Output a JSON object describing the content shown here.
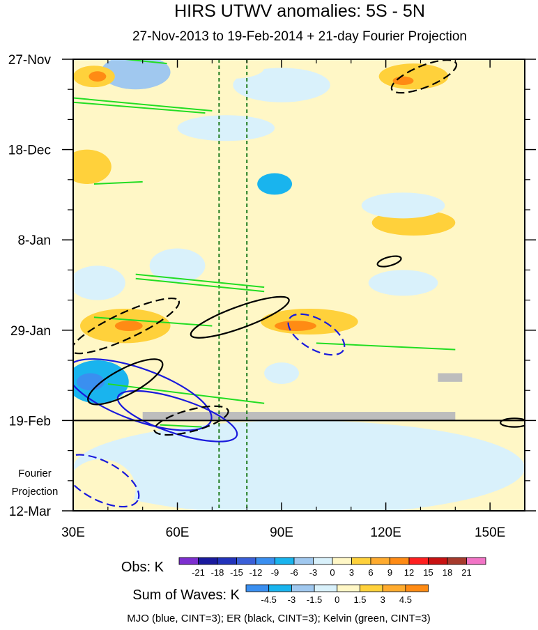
{
  "chart_data": {
    "type": "heatmap",
    "title": "HIRS UTWV anomalies: 5S - 5N",
    "subtitle": "27-Nov-2013 to 19-Feb-2014 + 21-day Fourier Projection",
    "x_axis": {
      "range": [
        30,
        160
      ],
      "units": "degrees longitude",
      "ticks": [
        {
          "value": 30,
          "label": "30E"
        },
        {
          "value": 60,
          "label": "60E"
        },
        {
          "value": 90,
          "label": "90E"
        },
        {
          "value": 120,
          "label": "120E"
        },
        {
          "value": 150,
          "label": "150E"
        }
      ]
    },
    "y_axis": {
      "range_days": [
        0,
        105
      ],
      "units": "days since 27-Nov-2013",
      "ticks": [
        {
          "day": 0,
          "label": "27-Nov"
        },
        {
          "day": 21,
          "label": "18-Dec"
        },
        {
          "day": 42,
          "label": "8-Jan"
        },
        {
          "day": 63,
          "label": "29-Jan"
        },
        {
          "day": 84,
          "label": "19-Feb"
        },
        {
          "day": 105,
          "label": "12-Mar"
        }
      ]
    },
    "projection_label_line1": "Fourier",
    "projection_label_line2": "Projection",
    "projection_start_day": 84,
    "reference_longitudes": [
      72,
      80
    ],
    "missing_data_bands": [
      {
        "lon_from": 50,
        "lon_to": 140,
        "day_from": 82,
        "day_to": 84
      },
      {
        "lon_from": 135,
        "lon_to": 142,
        "day_from": 73,
        "day_to": 75
      }
    ],
    "anomaly_regions": [
      {
        "lon": 36,
        "day": 4,
        "rlon": 6,
        "rday": 2.5,
        "value": 6
      },
      {
        "lon": 37,
        "day": 4,
        "rlon": 2.5,
        "rday": 1.2,
        "value": 12
      },
      {
        "lon": 76,
        "day": 2,
        "rlon": 9,
        "rday": 2.5,
        "value": 3
      },
      {
        "lon": 128,
        "day": 4,
        "rlon": 10,
        "rday": 3,
        "value": 6
      },
      {
        "lon": 125,
        "day": 5,
        "rlon": 3,
        "rday": 1,
        "value": 12
      },
      {
        "lon": 105,
        "day": 12,
        "rlon": 12,
        "rday": 2.5,
        "value": 3
      },
      {
        "lon": 34,
        "day": 25,
        "rlon": 7,
        "rday": 4,
        "value": 6
      },
      {
        "lon": 52,
        "day": 19,
        "rlon": 4,
        "rday": 3,
        "value": 3
      },
      {
        "lon": 78,
        "day": 29,
        "rlon": 5,
        "rday": 3,
        "value": 3
      },
      {
        "lon": 150,
        "day": 21,
        "rlon": 7,
        "rday": 2,
        "value": 3
      },
      {
        "lon": 108,
        "day": 38,
        "rlon": 5,
        "rday": 2,
        "value": 3
      },
      {
        "lon": 128,
        "day": 38,
        "rlon": 12,
        "rday": 3,
        "value": 6
      },
      {
        "lon": 150,
        "day": 39,
        "rlon": 5,
        "rday": 2,
        "value": 3
      },
      {
        "lon": 80,
        "day": 47,
        "rlon": 6,
        "rday": 4,
        "value": 3
      },
      {
        "lon": 45,
        "day": 62,
        "rlon": 13,
        "rday": 4,
        "value": 6
      },
      {
        "lon": 46,
        "day": 62,
        "rlon": 4,
        "rday": 1.2,
        "value": 12
      },
      {
        "lon": 98,
        "day": 61,
        "rlon": 14,
        "rday": 3,
        "value": 6
      },
      {
        "lon": 94,
        "day": 62,
        "rlon": 6,
        "rday": 1.2,
        "value": 12
      },
      {
        "lon": 150,
        "day": 71,
        "rlon": 8,
        "rday": 4,
        "value": 3
      },
      {
        "lon": 48,
        "day": 3,
        "rlon": 10,
        "rday": 4,
        "value": -6
      },
      {
        "lon": 90,
        "day": 6,
        "rlon": 14,
        "rday": 4,
        "value": -3
      },
      {
        "lon": 74,
        "day": 16,
        "rlon": 14,
        "rday": 3,
        "value": -3
      },
      {
        "lon": 88,
        "day": 29,
        "rlon": 5,
        "rday": 2.5,
        "value": -9
      },
      {
        "lon": 125,
        "day": 34,
        "rlon": 12,
        "rday": 3,
        "value": -3
      },
      {
        "lon": 37,
        "day": 52,
        "rlon": 8,
        "rday": 4,
        "value": -3
      },
      {
        "lon": 60,
        "day": 48,
        "rlon": 8,
        "rday": 4,
        "value": -3
      },
      {
        "lon": 125,
        "day": 52,
        "rlon": 10,
        "rday": 3,
        "value": -3
      },
      {
        "lon": 37,
        "day": 75,
        "rlon": 9,
        "rday": 5,
        "value": -9
      },
      {
        "lon": 35,
        "day": 75,
        "rlon": 4,
        "rday": 2,
        "value": -12
      },
      {
        "lon": 90,
        "day": 73,
        "rlon": 5,
        "rday": 2.5,
        "value": -3
      },
      {
        "lon": 95,
        "day": 95,
        "rlon": 65,
        "rday": 11,
        "value": -1.5
      },
      {
        "lon": 38,
        "day": 100,
        "rlon": 10,
        "rday": 7,
        "value": 3
      }
    ],
    "wave_contours": [
      {
        "wave": "MJO",
        "sign": "positive",
        "lon": 49,
        "day": 78,
        "rlon": 22,
        "rday": 6,
        "angle": 20
      },
      {
        "wave": "MJO",
        "sign": "positive",
        "lon": 60,
        "day": 83,
        "rlon": 18,
        "rday": 4,
        "angle": 18
      },
      {
        "wave": "MJO",
        "sign": "negative",
        "lon": 100,
        "day": 64,
        "rlon": 9,
        "rday": 3.5,
        "angle": 30
      },
      {
        "wave": "MJO",
        "sign": "negative",
        "lon": 38,
        "day": 98,
        "rlon": 12,
        "rday": 4.5,
        "angle": 28
      },
      {
        "wave": "ER",
        "sign": "negative",
        "lon": 131,
        "day": 4,
        "rlon": 10,
        "rday": 2.5,
        "angle": -22
      },
      {
        "wave": "ER",
        "sign": "negative",
        "lon": 45,
        "day": 62,
        "rlon": 17,
        "rday": 3,
        "angle": -25
      },
      {
        "wave": "ER",
        "sign": "positive",
        "lon": 78,
        "day": 60,
        "rlon": 15,
        "rday": 2.5,
        "angle": -20
      },
      {
        "wave": "ER",
        "sign": "positive",
        "lon": 45,
        "day": 75,
        "rlon": 12,
        "rday": 3,
        "angle": -28
      },
      {
        "wave": "ER",
        "sign": "negative",
        "lon": 64,
        "day": 84,
        "rlon": 11,
        "rday": 2.5,
        "angle": -15
      },
      {
        "wave": "ER",
        "sign": "positive",
        "lon": 121,
        "day": 47,
        "rlon": 3.5,
        "rday": 1,
        "angle": -15
      },
      {
        "wave": "ER",
        "sign": "positive",
        "lon": 157,
        "day": 84.5,
        "rlon": 4,
        "rday": 1,
        "angle": 0
      }
    ],
    "kelvin_lines": [
      {
        "lon_from": 45,
        "lon_to": 57,
        "day_from": 0,
        "day_to": 1
      },
      {
        "lon_from": 30,
        "lon_to": 70,
        "day_from": 9,
        "day_to": 12
      },
      {
        "lon_from": 30,
        "lon_to": 68,
        "day_from": 10,
        "day_to": 12.5
      },
      {
        "lon_from": 36,
        "lon_to": 50,
        "day_from": 29,
        "day_to": 28.5
      },
      {
        "lon_from": 48,
        "lon_to": 85,
        "day_from": 50,
        "day_to": 53
      },
      {
        "lon_from": 48,
        "lon_to": 85,
        "day_from": 51,
        "day_to": 54
      },
      {
        "lon_from": 36,
        "lon_to": 70,
        "day_from": 60,
        "day_to": 62
      },
      {
        "lon_from": 100,
        "lon_to": 140,
        "day_from": 66,
        "day_to": 67.5
      },
      {
        "lon_from": 40,
        "lon_to": 85,
        "day_from": 75.5,
        "day_to": 80
      },
      {
        "lon_from": 55,
        "lon_to": 67,
        "day_from": 85,
        "day_to": 85.5
      }
    ],
    "obs_legend": {
      "label": "Obs: K",
      "ticks": [
        "-21",
        "-18",
        "-15",
        "-12",
        "-9",
        "-6",
        "-3",
        "0",
        "3",
        "6",
        "9",
        "12",
        "15",
        "18",
        "21"
      ],
      "colors": [
        "#7d2fcf",
        "#1a1a9e",
        "#2233bb",
        "#3a5fd8",
        "#3a8ff0",
        "#19b4ee",
        "#a0c8ef",
        "#d9f1fb",
        "#fff7c6",
        "#ffd13b",
        "#ffab2e",
        "#ff8b14",
        "#ff2020",
        "#c81212",
        "#a63a2c",
        "#f274c6"
      ]
    },
    "waves_legend": {
      "label": "Sum of Waves: K",
      "ticks": [
        "-4.5",
        "-3",
        "-1.5",
        "0",
        "1.5",
        "3",
        "4.5"
      ],
      "colors": [
        "#3a8ff0",
        "#19b4ee",
        "#a0c8ef",
        "#d9f1fb",
        "#fff7c6",
        "#ffd13b",
        "#ffab2e",
        "#ff8b14"
      ]
    },
    "footer_text": "MJO (blue, CINT=3); ER (black, CINT=3); Kelvin (green, CINT=3)",
    "line_colors": {
      "MJO": "#1a1adc",
      "ER": "#000000",
      "Kelvin": "#22dd22",
      "reference": "#1c7a1c",
      "missing": "#bdbdbd"
    }
  }
}
